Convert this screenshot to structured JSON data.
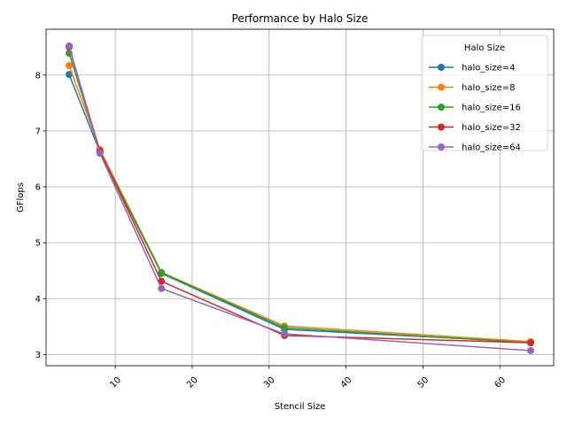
{
  "chart_data": {
    "type": "line",
    "title": "Performance by Halo Size",
    "xlabel": "Stencil Size",
    "ylabel": "GFlops",
    "xlim": [
      1,
      67
    ],
    "ylim": [
      2.8,
      8.82
    ],
    "x_ticks": [
      10,
      20,
      30,
      40,
      50,
      60
    ],
    "y_ticks": [
      3,
      4,
      5,
      6,
      7,
      8
    ],
    "grid": true,
    "legend": {
      "title": "Halo Size",
      "placement": "top-right"
    },
    "x": [
      4,
      8,
      16,
      32,
      64
    ],
    "series": [
      {
        "name": "halo_size=4",
        "color": "#1f77b4",
        "values": [
          8.01,
          6.62,
          4.45,
          3.45,
          3.22
        ]
      },
      {
        "name": "halo_size=8",
        "color": "#ff7f0e",
        "values": [
          8.17,
          6.67,
          4.47,
          3.51,
          3.23
        ]
      },
      {
        "name": "halo_size=16",
        "color": "#2ca02c",
        "values": [
          8.39,
          6.63,
          4.46,
          3.48,
          3.21
        ]
      },
      {
        "name": "halo_size=32",
        "color": "#d62728",
        "values": [
          8.5,
          6.64,
          4.31,
          3.34,
          3.21
        ]
      },
      {
        "name": "halo_size=64",
        "color": "#9467bd",
        "values": [
          8.52,
          6.6,
          4.18,
          3.37,
          3.07
        ]
      }
    ]
  }
}
